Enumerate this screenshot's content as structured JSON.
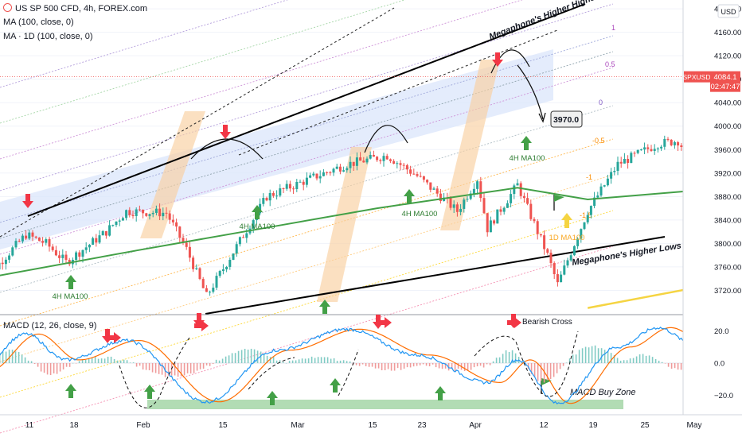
{
  "header": {
    "symbol_line": "US SP 500 CFD, 4h, FOREX.com",
    "ma1": "MA (100, close, 0)",
    "ma2": "MA · 1D (100, close, 0)",
    "macd": "MACD (12, 26, close, 9)"
  },
  "price_axis": {
    "currency": "USD",
    "ticks": [
      "4200.00",
      "4160.00",
      "4120.00",
      "4080.00",
      "4040.00",
      "4000.00",
      "3960.00",
      "3920.00",
      "3880.00",
      "3840.00",
      "3800.00",
      "3760.00",
      "3720.00"
    ],
    "symbol_badge": "SPXUSD",
    "last_price": "4084.1",
    "countdown": "02:47:47"
  },
  "macd_axis": {
    "ticks": [
      "20.0",
      "0.0",
      "−20.0"
    ]
  },
  "time_axis": {
    "labels": [
      "11",
      "18",
      "Feb",
      "15",
      "Mar",
      "15",
      "23",
      "Apr",
      "12",
      "19",
      "25",
      "May"
    ]
  },
  "colors": {
    "up": "#26a69a",
    "down": "#ef5350",
    "ma100": "#43a047",
    "ma1d": "#f5d442",
    "channel_fill": "#dbe6fb",
    "rally": "#f9cfa0",
    "buy_zone": "#a5d6a7",
    "arrow_up": "#43a047",
    "arrow_down": "#f23645",
    "macd_line": "#2196f3",
    "signal_line": "#ff6d00"
  },
  "annotations": {
    "higher_highs": "Megaphone's Higher Highs",
    "higher_lows": "Megaphone's Higher Lows",
    "target": "3970.0",
    "ma_label": "4H MA100",
    "ma1d_label": "1D MA100",
    "bearish_cross": "Bearish Cross",
    "buy_zone": "MACD Buy Zone",
    "fib_levels": [
      "1",
      "0.5",
      "0",
      "-0.5",
      "-1",
      "-1.5"
    ]
  },
  "chart_data": {
    "type": "candlestick",
    "title": "US SP 500 CFD, 4h, FOREX.com",
    "y_range": [
      3680,
      4215
    ],
    "last_price": 4084.1,
    "close_path": [
      {
        "date": "Jan 6",
        "close": 3695
      },
      {
        "date": "Jan 8",
        "close": 3760
      },
      {
        "date": "Jan 11",
        "close": 3815
      },
      {
        "date": "Jan 13",
        "close": 3800
      },
      {
        "date": "Jan 15",
        "close": 3768
      },
      {
        "date": "Jan 19",
        "close": 3820
      },
      {
        "date": "Jan 21",
        "close": 3855
      },
      {
        "date": "Jan 25",
        "close": 3852
      },
      {
        "date": "Jan 27",
        "close": 3790
      },
      {
        "date": "Jan 29",
        "close": 3710
      },
      {
        "date": "Feb 1",
        "close": 3795
      },
      {
        "date": "Feb 4",
        "close": 3880
      },
      {
        "date": "Feb 9",
        "close": 3915
      },
      {
        "date": "Feb 12",
        "close": 3935
      },
      {
        "date": "Feb 16",
        "close": 3950
      },
      {
        "date": "Feb 19",
        "close": 3915
      },
      {
        "date": "Feb 23",
        "close": 3855
      },
      {
        "date": "Feb 25",
        "close": 3910
      },
      {
        "date": "Feb 26",
        "close": 3825
      },
      {
        "date": "Mar 1",
        "close": 3900
      },
      {
        "date": "Mar 4",
        "close": 3780
      },
      {
        "date": "Mar 5",
        "close": 3730
      },
      {
        "date": "Mar 8",
        "close": 3855
      },
      {
        "date": "Mar 11",
        "close": 3935
      },
      {
        "date": "Mar 15",
        "close": 3970
      },
      {
        "date": "Mar 17",
        "close": 3975
      },
      {
        "date": "Mar 19",
        "close": 3925
      },
      {
        "date": "Mar 23",
        "close": 3905
      },
      {
        "date": "Mar 25",
        "close": 3865
      },
      {
        "date": "Mar 26",
        "close": 3950
      },
      {
        "date": "Mar 29",
        "close": 3965
      },
      {
        "date": "Apr 1",
        "close": 4015
      },
      {
        "date": "Apr 5",
        "close": 4075
      },
      {
        "date": "Apr 7",
        "close": 4085
      },
      {
        "date": "Apr 8",
        "close": 4084.1
      }
    ],
    "ma100_4h": [
      {
        "date": "Jan 6",
        "value": 3738
      },
      {
        "date": "Jan 22",
        "value": 3788
      },
      {
        "date": "Feb 5",
        "value": 3830
      },
      {
        "date": "Feb 15",
        "value": 3860
      },
      {
        "date": "Mar 1",
        "value": 3895
      },
      {
        "date": "Mar 8",
        "value": 3875
      },
      {
        "date": "Mar 22",
        "value": 3895
      },
      {
        "date": "Apr 1",
        "value": 3930
      },
      {
        "date": "Apr 9",
        "value": 3965
      }
    ],
    "ma100_1d": [
      {
        "date": "Mar 8",
        "value": 3690
      },
      {
        "date": "Mar 22",
        "value": 3735
      },
      {
        "date": "Apr 9",
        "value": 3805
      }
    ],
    "projection_target": 3970.0,
    "macd": {
      "y_range": [
        -30,
        28
      ],
      "ticks": [
        20,
        0,
        -20
      ],
      "macd_line": [
        {
          "date": "Jan 6",
          "value": -5
        },
        {
          "date": "Jan 11",
          "value": 18
        },
        {
          "date": "Jan 15",
          "value": 2
        },
        {
          "date": "Jan 21",
          "value": 14
        },
        {
          "date": "Jan 29",
          "value": -24
        },
        {
          "date": "Feb 5",
          "value": 8
        },
        {
          "date": "Feb 12",
          "value": 21
        },
        {
          "date": "Feb 19",
          "value": 5
        },
        {
          "date": "Feb 26",
          "value": -12
        },
        {
          "date": "Mar 1",
          "value": 2
        },
        {
          "date": "Mar 5",
          "value": -25
        },
        {
          "date": "Mar 11",
          "value": 10
        },
        {
          "date": "Mar 15",
          "value": 22
        },
        {
          "date": "Mar 19",
          "value": 10
        },
        {
          "date": "Mar 24",
          "value": -18
        },
        {
          "date": "Mar 29",
          "value": 3
        },
        {
          "date": "Apr 2",
          "value": 16
        },
        {
          "date": "Apr 6",
          "value": 24
        },
        {
          "date": "Apr 8",
          "value": 20
        }
      ]
    }
  }
}
